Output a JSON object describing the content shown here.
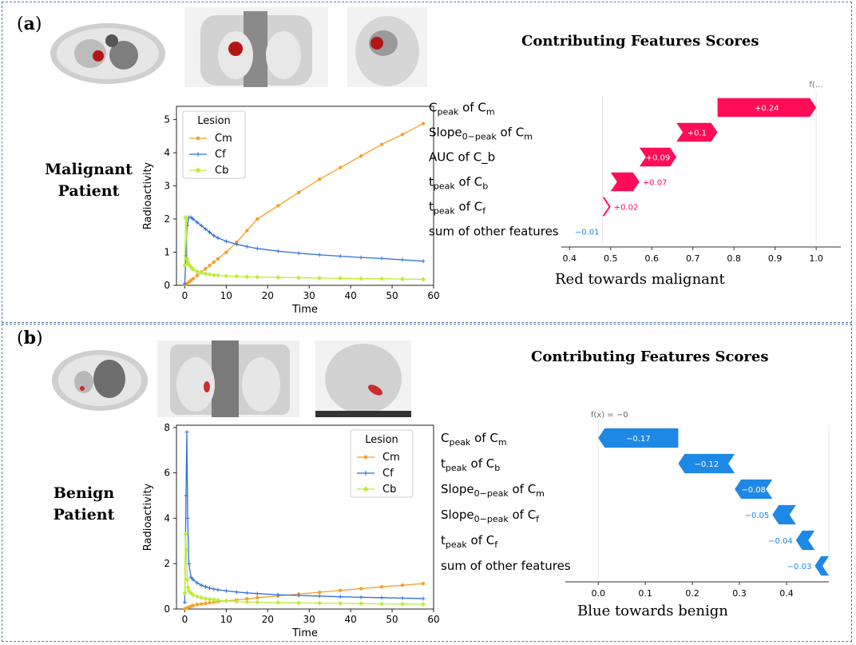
{
  "panels": [
    {
      "letter": "a",
      "patient_label_line1": "Malignant",
      "patient_label_line2": "Patient",
      "scores_title": "Contributing Features Scores",
      "toward_label": "Red towards malignant",
      "fx_label": "f(…",
      "colors": {
        "positive": "#ff0d57",
        "negative": "#1e88e5"
      }
    },
    {
      "letter": "b",
      "patient_label_line1": "Benign",
      "patient_label_line2": "Patient",
      "scores_title": "Contributing Features Scores",
      "toward_label": "Blue towards benign",
      "fx_label": "f(x) = −0",
      "colors": {
        "positive": "#ff0d57",
        "negative": "#1e88e5"
      }
    }
  ],
  "chart_data": [
    {
      "type": "line",
      "xlabel": "Time",
      "ylabel": "Radioactivity",
      "xlim": [
        -2,
        60
      ],
      "ylim": [
        0,
        5.4
      ],
      "xticks": [
        0,
        10,
        20,
        30,
        40,
        50,
        60
      ],
      "yticks": [
        0,
        1,
        2,
        3,
        4,
        5
      ],
      "legend_title": "Lesion",
      "legend_position": "upper-left",
      "series": [
        {
          "name": "Cm",
          "color": "#f5a02a",
          "marker": "dot",
          "x": [
            0,
            0.5,
            1,
            1.5,
            2,
            3,
            4,
            5,
            6,
            7,
            8,
            10,
            12.5,
            15,
            17.5,
            22.5,
            27.5,
            32.5,
            37.5,
            42.5,
            47.5,
            52.5,
            57.5
          ],
          "y": [
            0.02,
            0.05,
            0.1,
            0.15,
            0.2,
            0.3,
            0.4,
            0.5,
            0.6,
            0.7,
            0.8,
            1.0,
            1.3,
            1.65,
            2.0,
            2.4,
            2.8,
            3.2,
            3.55,
            3.9,
            4.25,
            4.55,
            4.88
          ]
        },
        {
          "name": "Cf",
          "color": "#2f6fd6",
          "marker": "plus",
          "x": [
            0,
            0.3,
            0.6,
            1,
            1.5,
            2,
            3,
            4,
            5,
            6,
            7,
            8,
            10,
            12.5,
            15,
            17.5,
            22.5,
            27.5,
            32.5,
            37.5,
            42.5,
            47.5,
            52.5,
            57.5
          ],
          "y": [
            0.05,
            0.9,
            1.8,
            2.05,
            2.05,
            2.0,
            1.9,
            1.8,
            1.7,
            1.6,
            1.5,
            1.43,
            1.33,
            1.24,
            1.17,
            1.11,
            1.03,
            0.97,
            0.92,
            0.88,
            0.84,
            0.81,
            0.77,
            0.73
          ]
        },
        {
          "name": "Cb",
          "color": "#bdec3a",
          "marker": "diamond",
          "x": [
            0,
            0.2,
            0.4,
            0.6,
            0.8,
            1,
            1.5,
            2,
            3,
            4,
            5,
            6,
            7,
            8,
            10,
            12.5,
            15,
            17.5,
            22.5,
            27.5,
            32.5,
            37.5,
            42.5,
            47.5,
            52.5,
            57.5
          ],
          "y": [
            0.6,
            2.05,
            2.0,
            0.8,
            0.7,
            0.62,
            0.55,
            0.48,
            0.42,
            0.38,
            0.35,
            0.33,
            0.31,
            0.3,
            0.28,
            0.27,
            0.26,
            0.25,
            0.24,
            0.23,
            0.22,
            0.21,
            0.2,
            0.2,
            0.19,
            0.18
          ]
        }
      ]
    },
    {
      "type": "bar",
      "subtype": "waterfall",
      "features": [
        "C_peak of C_m",
        "Slope_0−peak of C_m",
        "AUC of C_b",
        "t_peak of C_b",
        "t_peak of C_f",
        "sum of other features"
      ],
      "values": [
        0.24,
        0.1,
        0.09,
        0.07,
        0.02,
        -0.01
      ],
      "value_labels": [
        "+0.24",
        "+0.1",
        "+0.09",
        "+0.07",
        "+0.02",
        "−0.01"
      ],
      "xlim": [
        0.38,
        1.06
      ],
      "xticks": [
        0.4,
        0.5,
        0.6,
        0.7,
        0.8,
        0.9,
        1.0
      ],
      "xtick_labels": [
        "0.4",
        "0.5",
        "0.6",
        "0.7",
        "0.8",
        "0.9",
        "1.0"
      ],
      "base": 0.48,
      "fx": 1.0
    },
    {
      "type": "line",
      "xlabel": "Time",
      "ylabel": "Radioactivity",
      "xlim": [
        -2,
        60
      ],
      "ylim": [
        0,
        8.1
      ],
      "xticks": [
        0,
        10,
        20,
        30,
        40,
        50,
        60
      ],
      "yticks": [
        0,
        2,
        4,
        6,
        8
      ],
      "legend_title": "Lesion",
      "legend_position": "upper-right",
      "series": [
        {
          "name": "Cm",
          "color": "#f5a02a",
          "marker": "dot",
          "x": [
            0,
            0.5,
            1,
            1.5,
            2,
            3,
            4,
            5,
            6,
            7,
            8,
            10,
            12.5,
            15,
            17.5,
            22.5,
            27.5,
            32.5,
            37.5,
            42.5,
            47.5,
            52.5,
            57.5
          ],
          "y": [
            0.0,
            0.05,
            0.08,
            0.12,
            0.15,
            0.2,
            0.22,
            0.25,
            0.28,
            0.3,
            0.33,
            0.36,
            0.4,
            0.45,
            0.5,
            0.58,
            0.66,
            0.74,
            0.82,
            0.9,
            0.98,
            1.05,
            1.12
          ]
        },
        {
          "name": "Cf",
          "color": "#2f6fd6",
          "marker": "plus",
          "x": [
            0,
            0.3,
            0.5,
            0.7,
            1,
            1.5,
            2,
            3,
            4,
            5,
            6,
            7,
            8,
            10,
            12.5,
            15,
            17.5,
            22.5,
            27.5,
            32.5,
            37.5,
            42.5,
            47.5,
            52.5,
            57.5
          ],
          "y": [
            0.3,
            5.0,
            7.8,
            4.0,
            2.0,
            1.4,
            1.3,
            1.15,
            1.05,
            0.98,
            0.92,
            0.88,
            0.85,
            0.8,
            0.75,
            0.71,
            0.68,
            0.63,
            0.6,
            0.57,
            0.54,
            0.52,
            0.5,
            0.48,
            0.46
          ]
        },
        {
          "name": "Cb",
          "color": "#bdec3a",
          "marker": "diamond",
          "x": [
            0,
            0.2,
            0.4,
            0.6,
            0.8,
            1,
            1.5,
            2,
            3,
            4,
            5,
            6,
            7,
            8,
            10,
            12.5,
            15,
            17.5,
            22.5,
            27.5,
            32.5,
            37.5,
            42.5,
            47.5,
            52.5,
            57.5
          ],
          "y": [
            0.7,
            3.3,
            2.6,
            1.3,
            0.95,
            0.8,
            0.7,
            0.62,
            0.55,
            0.5,
            0.46,
            0.43,
            0.41,
            0.39,
            0.36,
            0.33,
            0.31,
            0.3,
            0.28,
            0.27,
            0.26,
            0.25,
            0.24,
            0.23,
            0.22,
            0.21
          ]
        }
      ]
    },
    {
      "type": "bar",
      "subtype": "waterfall",
      "features": [
        "C_peak of C_m",
        "t_peak of C_b",
        "Slope_0−peak of C_m",
        "Slope_0−peak of C_f",
        "t_peak of C_f",
        "sum of other features"
      ],
      "values": [
        -0.17,
        -0.12,
        -0.08,
        -0.05,
        -0.04,
        -0.03
      ],
      "value_labels": [
        "−0.17",
        "−0.12",
        "−0.08",
        "−0.05",
        "−0.04",
        "−0.03"
      ],
      "xlim": [
        -0.07,
        0.49
      ],
      "xticks": [
        0.0,
        0.1,
        0.2,
        0.3,
        0.4
      ],
      "xtick_labels": [
        "0.0",
        "0.1",
        "0.2",
        "0.3",
        "0.4"
      ],
      "base": 0.49,
      "fx": 0.0
    }
  ]
}
